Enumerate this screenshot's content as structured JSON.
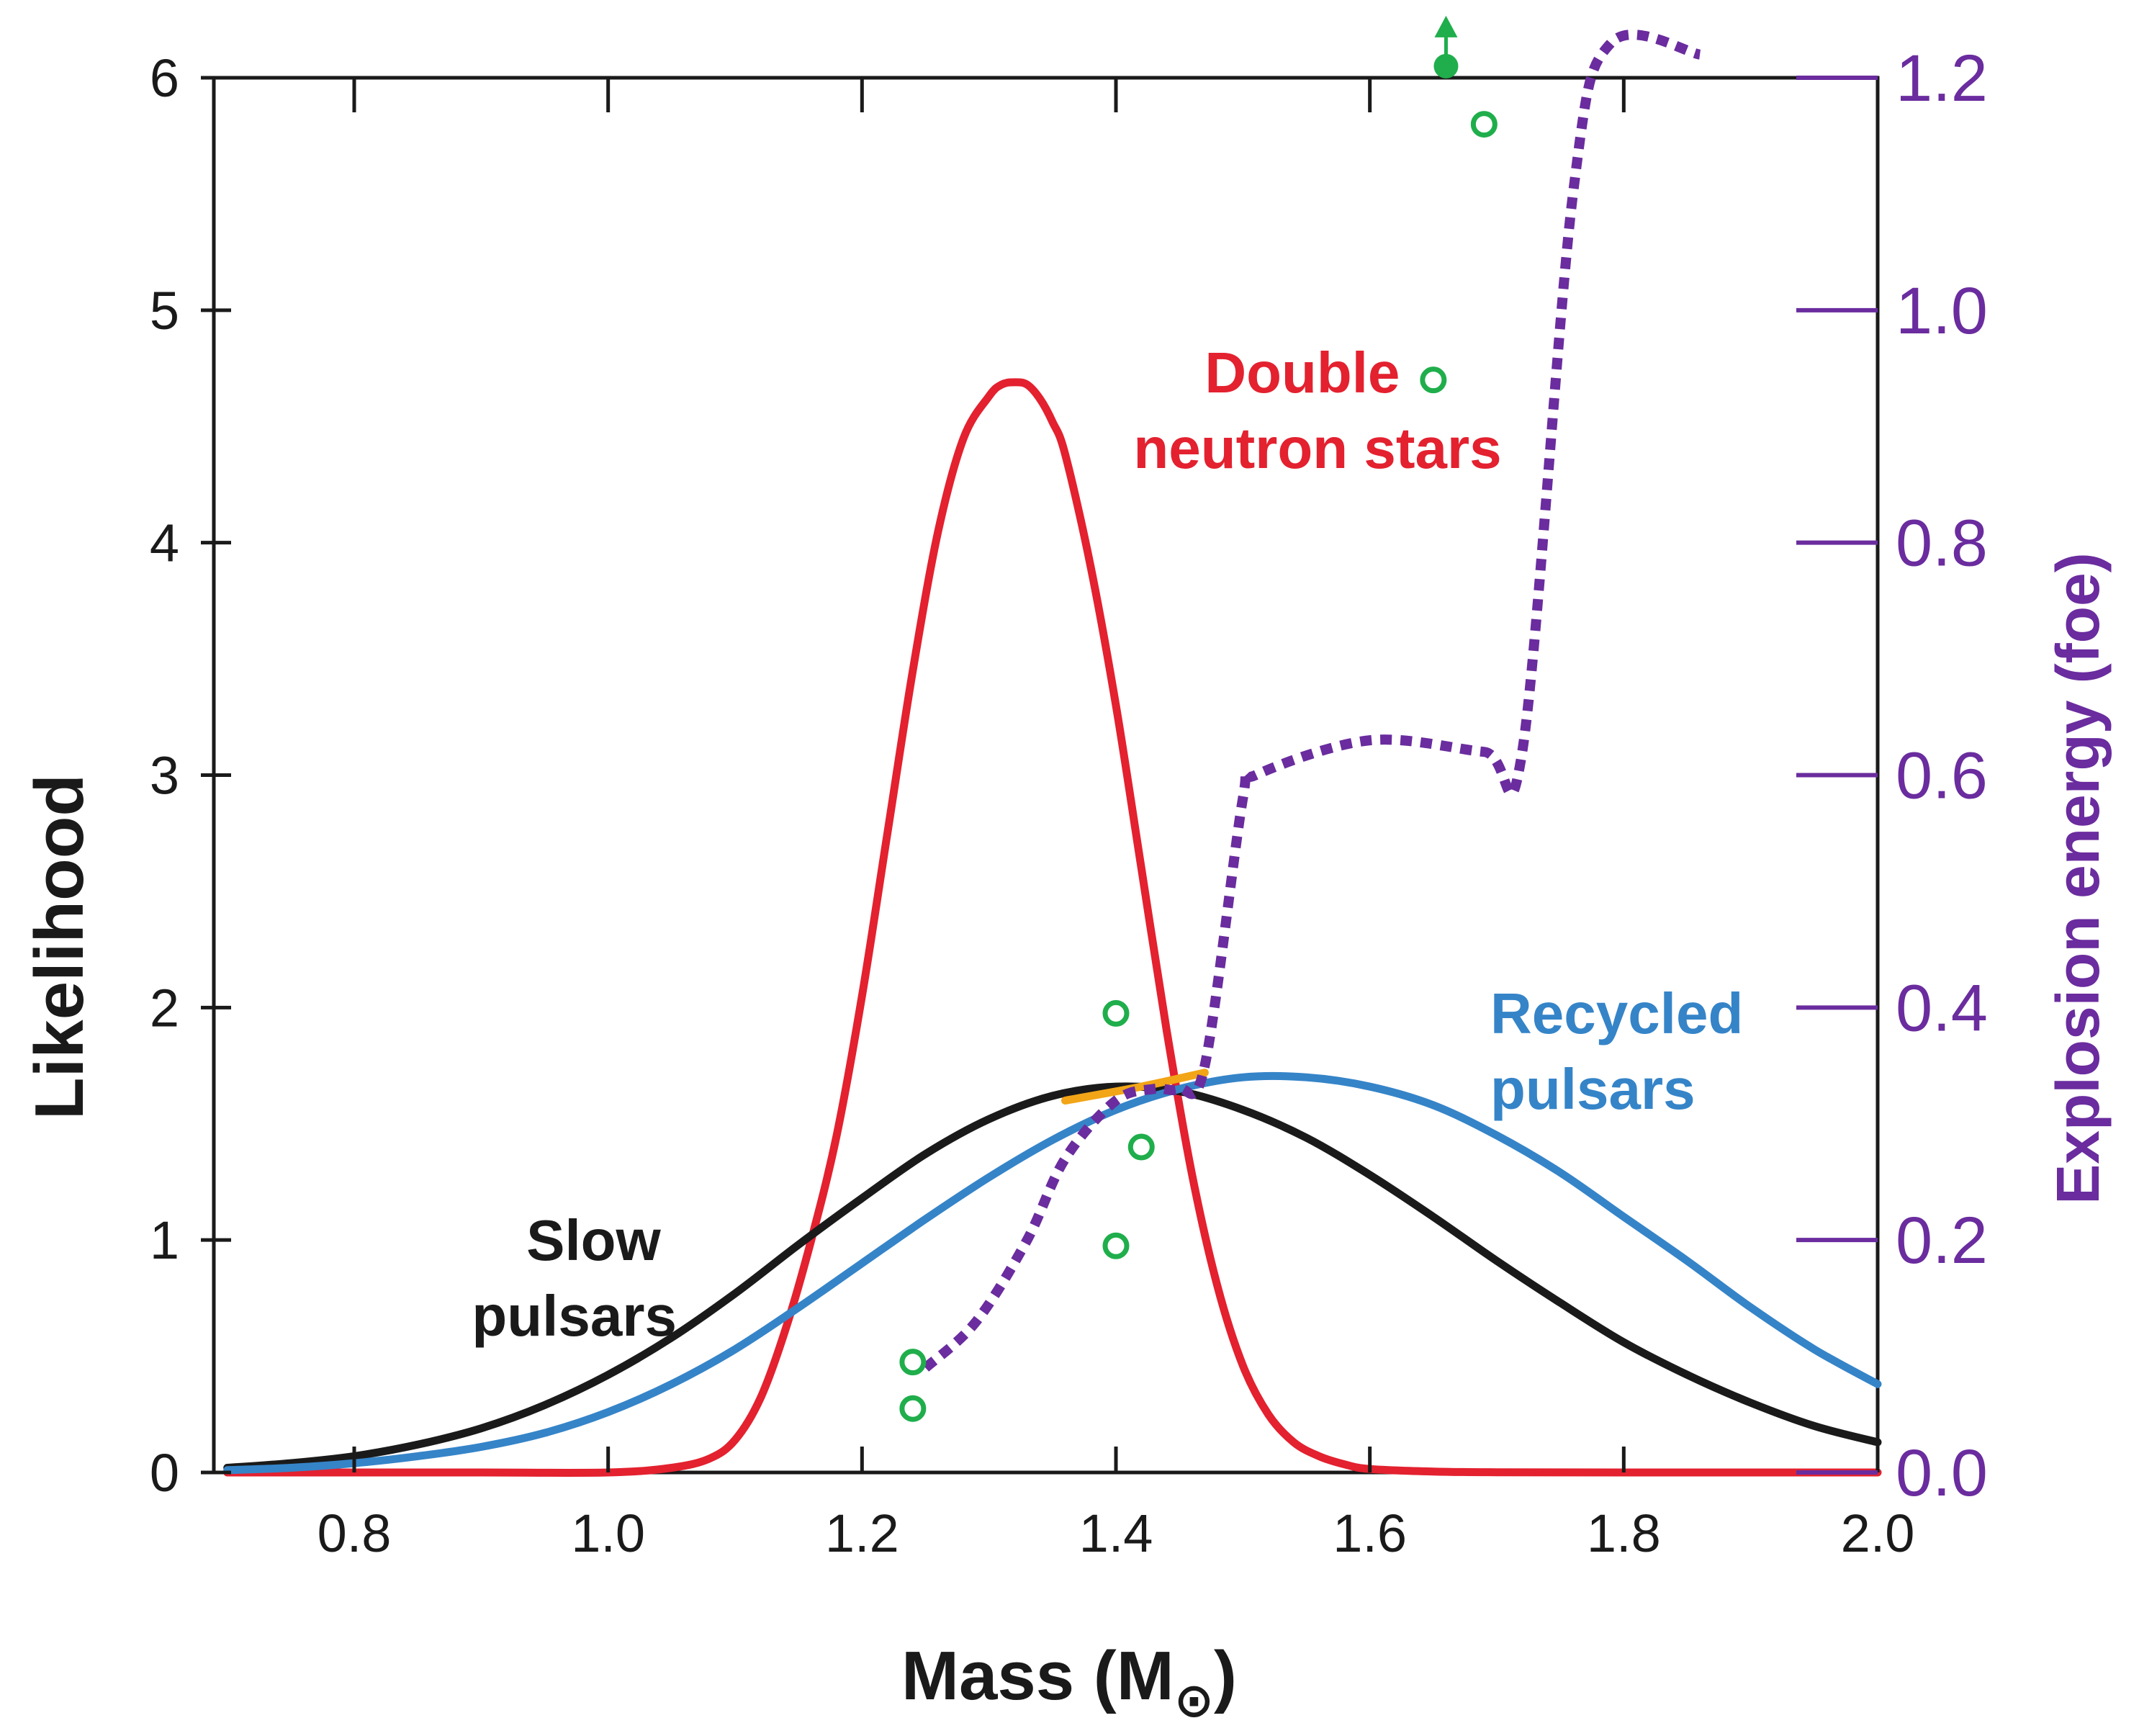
{
  "chart_data": {
    "type": "line",
    "title": "",
    "xlabel": "Mass (M",
    "xlabel_symbol": "⊙",
    "xlabel_close": ")",
    "ylabel": "Likelihood",
    "y2label": "Explosion energy (foe)",
    "xlim": [
      0.7,
      2.0
    ],
    "ylim": [
      0,
      6
    ],
    "y2lim": [
      0,
      1.2
    ],
    "x_ticks": [
      {
        "value": 0.8,
        "label": "0.8"
      },
      {
        "value": 1.0,
        "label": "1.0"
      },
      {
        "value": 1.2,
        "label": "1.2"
      },
      {
        "value": 1.4,
        "label": "1.4"
      },
      {
        "value": 1.6,
        "label": "1.6"
      },
      {
        "value": 1.8,
        "label": "1.8"
      },
      {
        "value": 2.0,
        "label": "2.0"
      }
    ],
    "y_ticks": [
      {
        "value": 0,
        "label": "0"
      },
      {
        "value": 1,
        "label": "1"
      },
      {
        "value": 2,
        "label": "2"
      },
      {
        "value": 3,
        "label": "3"
      },
      {
        "value": 4,
        "label": "4"
      },
      {
        "value": 5,
        "label": "5"
      },
      {
        "value": 6,
        "label": "6"
      }
    ],
    "y2_ticks": [
      {
        "value": 0.0,
        "label": "0.0"
      },
      {
        "value": 0.2,
        "label": "0.2"
      },
      {
        "value": 0.4,
        "label": "0.4"
      },
      {
        "value": 0.6,
        "label": "0.6"
      },
      {
        "value": 0.8,
        "label": "0.8"
      },
      {
        "value": 1.0,
        "label": "1.0"
      },
      {
        "value": 1.2,
        "label": "1.2"
      }
    ],
    "series": [
      {
        "name": "Double neutron stars",
        "label_lines": [
          "Double",
          "neutron stars"
        ],
        "color": "#e3212f",
        "axis": "left",
        "x": [
          0.7,
          0.8,
          0.9,
          1.0,
          1.05,
          1.08,
          1.1,
          1.12,
          1.14,
          1.16,
          1.18,
          1.2,
          1.22,
          1.24,
          1.26,
          1.28,
          1.3,
          1.31,
          1.32,
          1.33,
          1.34,
          1.35,
          1.36,
          1.38,
          1.4,
          1.42,
          1.44,
          1.46,
          1.48,
          1.5,
          1.52,
          1.54,
          1.56,
          1.58,
          1.6,
          1.65,
          1.7,
          1.8,
          2.0
        ],
        "y": [
          0,
          0,
          0,
          0,
          0.02,
          0.06,
          0.14,
          0.32,
          0.62,
          1.0,
          1.45,
          2.05,
          2.75,
          3.45,
          4.05,
          4.45,
          4.63,
          4.68,
          4.69,
          4.68,
          4.62,
          4.52,
          4.38,
          3.9,
          3.3,
          2.6,
          1.9,
          1.28,
          0.8,
          0.46,
          0.25,
          0.13,
          0.07,
          0.035,
          0.015,
          0.004,
          0.001,
          0,
          0
        ]
      },
      {
        "name": "Slow pulsars",
        "label_lines": [
          "Slow",
          "pulsars"
        ],
        "color": "#1a1a1a",
        "axis": "left",
        "x": [
          0.7,
          0.75,
          0.8,
          0.85,
          0.9,
          0.95,
          1.0,
          1.05,
          1.1,
          1.15,
          1.2,
          1.25,
          1.3,
          1.35,
          1.4,
          1.45,
          1.5,
          1.55,
          1.6,
          1.65,
          1.7,
          1.75,
          1.8,
          1.85,
          1.9,
          1.95,
          2.0
        ],
        "y": [
          0.02,
          0.04,
          0.07,
          0.12,
          0.19,
          0.29,
          0.42,
          0.58,
          0.77,
          0.98,
          1.18,
          1.37,
          1.52,
          1.62,
          1.66,
          1.64,
          1.56,
          1.44,
          1.28,
          1.1,
          0.91,
          0.73,
          0.56,
          0.42,
          0.3,
          0.2,
          0.13
        ]
      },
      {
        "name": "Recycled pulsars",
        "label_lines": [
          "Recycled",
          "pulsars"
        ],
        "color": "#3584c8",
        "axis": "left",
        "x": [
          0.7,
          0.75,
          0.8,
          0.85,
          0.9,
          0.95,
          1.0,
          1.05,
          1.1,
          1.15,
          1.2,
          1.25,
          1.3,
          1.35,
          1.4,
          1.45,
          1.5,
          1.55,
          1.6,
          1.65,
          1.7,
          1.75,
          1.8,
          1.85,
          1.9,
          1.95,
          2.0
        ],
        "y": [
          0.01,
          0.02,
          0.04,
          0.07,
          0.11,
          0.17,
          0.26,
          0.38,
          0.53,
          0.71,
          0.9,
          1.09,
          1.27,
          1.43,
          1.56,
          1.65,
          1.7,
          1.7,
          1.66,
          1.58,
          1.45,
          1.29,
          1.1,
          0.91,
          0.71,
          0.53,
          0.38
        ]
      },
      {
        "name": "Explosion energy",
        "color": "#6a2c9e",
        "axis": "right",
        "style": "dotted",
        "x": [
          1.25,
          1.29,
          1.33,
          1.36,
          1.4,
          1.43,
          1.45,
          1.47,
          1.5,
          1.51,
          1.6,
          1.69,
          1.72,
          1.76,
          1.79,
          1.86
        ],
        "y": [
          0.09,
          0.13,
          0.2,
          0.27,
          0.32,
          0.33,
          0.33,
          0.35,
          0.58,
          0.6,
          0.63,
          0.62,
          0.62,
          1.1,
          1.23,
          1.22
        ]
      },
      {
        "name": "Highlight",
        "color": "#f2a516",
        "axis": "left",
        "x": [
          1.36,
          1.42,
          1.47
        ],
        "y": [
          1.6,
          1.66,
          1.72
        ]
      }
    ],
    "points": {
      "color": "#1fae4b",
      "open": [
        {
          "x": 1.24,
          "y": 0.095
        },
        {
          "x": 1.24,
          "y": 0.055
        },
        {
          "x": 1.4,
          "y": 0.195
        },
        {
          "x": 1.42,
          "y": 0.28
        },
        {
          "x": 1.4,
          "y": 0.395
        },
        {
          "x": 1.65,
          "y": 0.94
        },
        {
          "x": 1.69,
          "y": 1.16
        }
      ],
      "filled": [
        {
          "x": 1.66,
          "y": 1.21,
          "lower_limit": true
        }
      ]
    }
  }
}
